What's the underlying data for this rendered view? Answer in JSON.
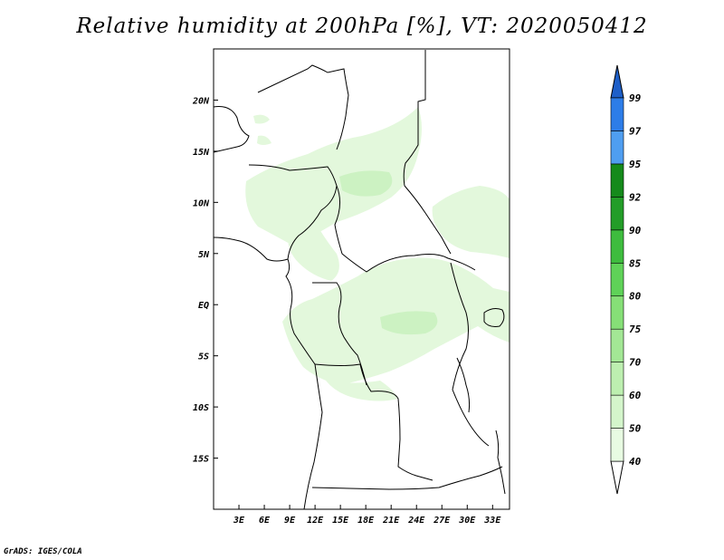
{
  "title": "Relative humidity at 200hPa [%], VT: 2020050412",
  "credit": "GrADS: IGES/COLA",
  "map": {
    "lon_range": [
      0,
      35
    ],
    "lat_range": [
      -20,
      25
    ],
    "lon_ticks": [
      "3E",
      "6E",
      "9E",
      "12E",
      "15E",
      "18E",
      "21E",
      "24E",
      "27E",
      "30E",
      "33E"
    ],
    "lat_ticks": [
      "20N",
      "15N",
      "10N",
      "5N",
      "EQ",
      "5S",
      "10S",
      "15S"
    ]
  },
  "colorbar": {
    "labels": [
      "40",
      "50",
      "60",
      "70",
      "75",
      "80",
      "85",
      "90",
      "92",
      "95",
      "97",
      "99"
    ],
    "colors": [
      "#ffffff",
      "#e8fbe2",
      "#d4f5cb",
      "#bdefb0",
      "#a3e795",
      "#86df77",
      "#5fd258",
      "#3ebc3e",
      "#239d28",
      "#158a1b",
      "#4f9ef0",
      "#2d7de8",
      "#1e5fc8"
    ]
  },
  "shading_colors": {
    "light": "#e3f8dc",
    "medium": "#ccf2c2"
  }
}
